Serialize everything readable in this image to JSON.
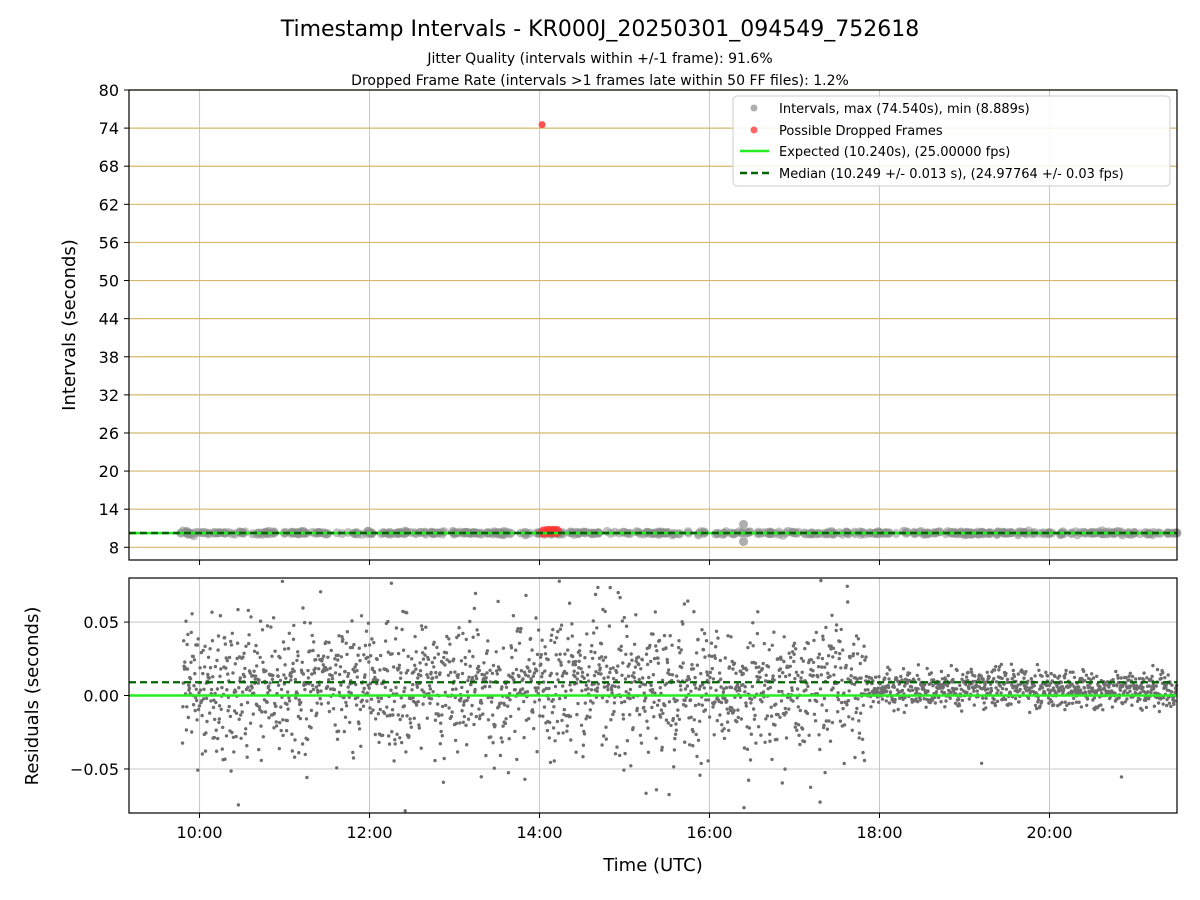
{
  "chart_data": [
    {
      "type": "scatter",
      "panel": "intervals",
      "title": "Timestamp Intervals - KR000J_20250301_094549_752618",
      "subtitle_lines": [
        "Jitter Quality (intervals within +/-1 frame): 91.6%",
        "Dropped Frame Rate (intervals >1 frames late within 50 FF files): 1.2%"
      ],
      "ylabel": "Intervals (seconds)",
      "xlabel": "",
      "ylim": [
        6,
        80
      ],
      "yticks": [
        8,
        14,
        20,
        26,
        32,
        38,
        44,
        50,
        56,
        62,
        68,
        74,
        80
      ],
      "ytick_labels": [
        "8",
        "14",
        "20",
        "26",
        "32",
        "38",
        "44",
        "50",
        "56",
        "62",
        "68",
        "74",
        "80"
      ],
      "grid": true,
      "legend_position": "top-right",
      "legend": [
        "Intervals, max (74.540s), min (8.889s)",
        "Possible Dropped Frames",
        "Expected (10.240s), (25.00000 fps)",
        "Median (10.249 +/- 0.013 s), (24.97764 +/- 0.03 fps)"
      ],
      "expected_interval": 10.24,
      "median_interval": 10.249,
      "series": [
        {
          "name": "Intervals, max (74.540s), min (8.889s)",
          "points": [
            [
              9.78,
              10.24
            ],
            [
              10.2,
              10.26
            ],
            [
              11.0,
              10.22
            ],
            [
              12.0,
              10.27
            ],
            [
              13.0,
              10.25
            ],
            [
              14.0,
              10.23
            ],
            [
              14.6,
              10.26
            ],
            [
              15.5,
              10.27
            ],
            [
              16.4,
              11.6
            ],
            [
              16.4,
              8.9
            ],
            [
              17.0,
              10.3
            ],
            [
              18.0,
              10.25
            ],
            [
              19.0,
              10.25
            ],
            [
              20.0,
              10.25
            ],
            [
              21.0,
              10.25
            ],
            [
              21.5,
              10.25
            ]
          ]
        },
        {
          "name": "Possible Dropped Frames",
          "points": [
            [
              14.03,
              74.54
            ],
            [
              14.05,
              10.4
            ],
            [
              14.1,
              10.5
            ],
            [
              14.15,
              10.5
            ],
            [
              14.2,
              10.5
            ]
          ]
        }
      ]
    },
    {
      "type": "scatter",
      "panel": "residuals",
      "xlabel": "Time (UTC)",
      "ylabel": "Residuals (seconds)",
      "xlim": [
        9.17,
        21.5
      ],
      "xticks": [
        10,
        12,
        14,
        16,
        18,
        20
      ],
      "xtick_labels": [
        "10:00",
        "12:00",
        "14:00",
        "16:00",
        "18:00",
        "20:00"
      ],
      "ylim": [
        -0.08,
        0.08
      ],
      "yticks": [
        -0.05,
        0.0,
        0.05
      ],
      "ytick_labels": [
        "−0.05",
        "0.00",
        "0.05"
      ],
      "grid": true,
      "expected_residual": 0.0,
      "median_residual": 0.009,
      "series": [
        {
          "name": "Residuals",
          "x_range": [
            9.8,
            21.5
          ],
          "high_jitter_range": [
            9.8,
            17.85
          ],
          "high_jitter_spread": 0.022,
          "low_jitter_spread": 0.005
        }
      ]
    }
  ],
  "colors": {
    "intervals": "#8c8c8c",
    "dropped": "#ff3333",
    "expected": "#22ee22",
    "median": "#006400",
    "grid": "#c8c8c8",
    "hline": "#d4b96a",
    "residual": "#6e6e6e"
  }
}
